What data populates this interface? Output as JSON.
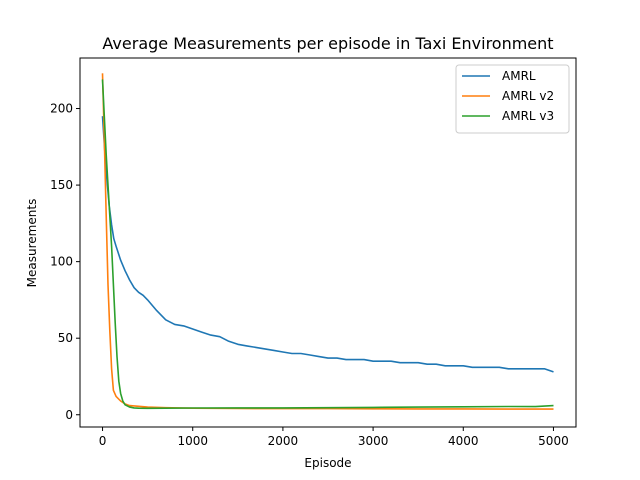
{
  "chart_data": {
    "type": "line",
    "title": "Average Measurements per episode in Taxi Environment",
    "xlabel": "Episode",
    "ylabel": "Measurements",
    "xlim": [
      -250,
      5250
    ],
    "ylim": [
      -8,
      233
    ],
    "xticks": [
      0,
      1000,
      2000,
      3000,
      4000,
      5000
    ],
    "yticks": [
      0,
      50,
      100,
      150,
      200
    ],
    "grid": false,
    "legend_position": "top-right",
    "series": [
      {
        "name": "AMRL",
        "color": "#1f77b4",
        "x": [
          0,
          25,
          50,
          75,
          100,
          125,
          150,
          200,
          250,
          300,
          350,
          400,
          450,
          500,
          600,
          700,
          800,
          900,
          1000,
          1100,
          1200,
          1300,
          1400,
          1500,
          1600,
          1700,
          1800,
          1900,
          2000,
          2100,
          2200,
          2300,
          2400,
          2500,
          2600,
          2700,
          2800,
          2900,
          3000,
          3100,
          3200,
          3300,
          3400,
          3500,
          3600,
          3700,
          3800,
          3900,
          4000,
          4100,
          4200,
          4300,
          4400,
          4500,
          4600,
          4700,
          4800,
          4900,
          5000
        ],
        "y": [
          195,
          172,
          152,
          136,
          124,
          115,
          110,
          101,
          94,
          88,
          83,
          80,
          78,
          75,
          68,
          62,
          59,
          58,
          56,
          54,
          52,
          51,
          48,
          46,
          45,
          44,
          43,
          42,
          41,
          40,
          40,
          39,
          38,
          37,
          37,
          36,
          36,
          36,
          35,
          35,
          35,
          34,
          34,
          34,
          33,
          33,
          32,
          32,
          32,
          31,
          31,
          31,
          31,
          30,
          30,
          30,
          30,
          30,
          28
        ]
      },
      {
        "name": "AMRL v2",
        "color": "#ff7f0e",
        "x": [
          0,
          20,
          40,
          60,
          80,
          100,
          120,
          150,
          200,
          250,
          300,
          400,
          500,
          700,
          1000,
          1500,
          2000,
          2500,
          3000,
          3500,
          4000,
          4500,
          5000
        ],
        "y": [
          223,
          180,
          130,
          85,
          55,
          30,
          16,
          12,
          9,
          7,
          6,
          5.5,
          5,
          4.6,
          4.3,
          4.1,
          4,
          4,
          3.9,
          3.8,
          3.8,
          3.7,
          3.7
        ]
      },
      {
        "name": "AMRL v3",
        "color": "#2ca02c",
        "x": [
          0,
          20,
          40,
          60,
          80,
          100,
          120,
          140,
          160,
          180,
          200,
          225,
          250,
          300,
          350,
          400,
          500,
          700,
          1000,
          1500,
          2000,
          2500,
          3000,
          3500,
          4000,
          4500,
          4800,
          5000
        ],
        "y": [
          219,
          195,
          170,
          150,
          130,
          110,
          85,
          60,
          38,
          22,
          14,
          9,
          6.5,
          5,
          4.5,
          4.3,
          4.2,
          4.3,
          4.4,
          4.5,
          4.5,
          4.6,
          4.8,
          5,
          5.2,
          5.4,
          5.3,
          6
        ]
      }
    ]
  }
}
